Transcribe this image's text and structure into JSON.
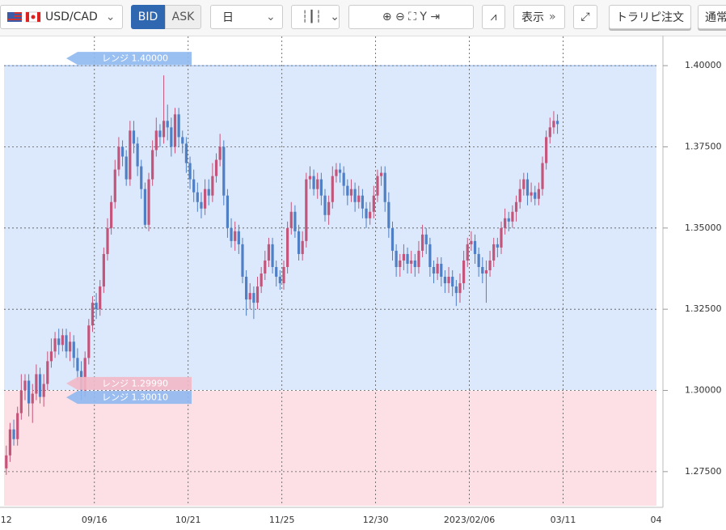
{
  "toolbar": {
    "pair": "USD/CAD",
    "bid": "BID",
    "ask": "ASK",
    "period": "日",
    "display": "表示",
    "order": "トラリピ注文",
    "normal": "通常"
  },
  "chart_data": {
    "type": "candlestick",
    "xlim": [
      -0.6,
      173.4
    ],
    "xticks": [
      {
        "value": 0,
        "label": "12"
      },
      {
        "value": 23.5,
        "label": "09/16"
      },
      {
        "value": 48.5,
        "label": "10/21"
      },
      {
        "value": 73.5,
        "label": "11/25"
      },
      {
        "value": 98.5,
        "label": "12/30"
      },
      {
        "value": 123.5,
        "label": "2023/02/06"
      },
      {
        "value": 148.5,
        "label": "03/11"
      },
      {
        "value": 173.3,
        "label": "04"
      }
    ],
    "ylim": [
      1.2645,
      1.409
    ],
    "yticks": [
      {
        "value": 1.4,
        "label": "1.40000"
      },
      {
        "value": 1.375,
        "label": "1.37500"
      },
      {
        "value": 1.35,
        "label": "1.35000"
      },
      {
        "value": 1.325,
        "label": "1.32500"
      },
      {
        "value": 1.3,
        "label": "1.30000"
      },
      {
        "value": 1.275,
        "label": "1.27500"
      }
    ],
    "grid": true,
    "up_color": "#c4557a",
    "down_color": "#4f7fc4",
    "ranges": [
      {
        "label": "レンジ 1.40000",
        "value": 1.4,
        "color": "#8fb8f0"
      },
      {
        "label": "レンジ 1.29990",
        "value": 1.2999,
        "color": "#f2b8c6"
      },
      {
        "label": "レンジ 1.30010",
        "value": 1.3001,
        "color": "#8fb8f0"
      }
    ],
    "open": [
      1.276,
      1.28,
      1.288,
      1.285,
      1.293,
      1.3,
      1.303,
      1.296,
      1.299,
      1.305,
      1.298,
      1.302,
      1.309,
      1.312,
      1.316,
      1.314,
      1.317,
      1.312,
      1.315,
      1.31,
      1.306,
      1.3,
      1.31,
      1.32,
      1.327,
      1.325,
      1.332,
      1.342,
      1.35,
      1.358,
      1.368,
      1.375,
      1.372,
      1.365,
      1.38,
      1.376,
      1.369,
      1.362,
      1.351,
      1.365,
      1.374,
      1.38,
      1.378,
      1.383,
      1.381,
      1.375,
      1.385,
      1.378,
      1.376,
      1.37,
      1.365,
      1.361,
      1.358,
      1.356,
      1.362,
      1.36,
      1.366,
      1.371,
      1.375,
      1.36,
      1.35,
      1.346,
      1.349,
      1.345,
      1.335,
      1.328,
      1.33,
      1.327,
      1.332,
      1.336,
      1.34,
      1.345,
      1.338,
      1.335,
      1.333,
      1.338,
      1.35,
      1.355,
      1.349,
      1.342,
      1.346,
      1.365,
      1.366,
      1.362,
      1.365,
      1.36,
      1.354,
      1.358,
      1.366,
      1.368,
      1.367,
      1.363,
      1.36,
      1.362,
      1.358,
      1.36,
      1.356,
      1.353,
      1.355,
      1.36,
      1.366,
      1.367,
      1.358,
      1.35,
      1.343,
      1.338,
      1.34,
      1.342,
      1.339,
      1.34,
      1.338,
      1.343,
      1.348,
      1.345,
      1.338,
      1.336,
      1.339,
      1.335,
      1.333,
      1.335,
      1.332,
      1.33,
      1.333,
      1.34,
      1.345,
      1.346,
      1.342,
      1.338,
      1.336,
      1.337,
      1.34,
      1.345,
      1.344,
      1.35,
      1.353,
      1.352,
      1.355,
      1.358,
      1.362,
      1.365,
      1.36,
      1.361,
      1.359,
      1.362,
      1.37,
      1.378,
      1.381,
      1.383
    ],
    "high": [
      1.283,
      1.29,
      1.291,
      1.295,
      1.305,
      1.305,
      1.305,
      1.302,
      1.308,
      1.307,
      1.305,
      1.312,
      1.316,
      1.318,
      1.319,
      1.319,
      1.319,
      1.318,
      1.317,
      1.313,
      1.309,
      1.312,
      1.322,
      1.329,
      1.33,
      1.334,
      1.344,
      1.353,
      1.36,
      1.371,
      1.378,
      1.377,
      1.374,
      1.383,
      1.383,
      1.378,
      1.371,
      1.364,
      1.367,
      1.377,
      1.384,
      1.382,
      1.397,
      1.388,
      1.384,
      1.387,
      1.387,
      1.38,
      1.378,
      1.372,
      1.368,
      1.364,
      1.361,
      1.365,
      1.365,
      1.37,
      1.373,
      1.379,
      1.377,
      1.362,
      1.353,
      1.352,
      1.351,
      1.347,
      1.337,
      1.333,
      1.332,
      1.335,
      1.338,
      1.343,
      1.347,
      1.347,
      1.34,
      1.337,
      1.34,
      1.352,
      1.358,
      1.357,
      1.351,
      1.349,
      1.367,
      1.369,
      1.368,
      1.367,
      1.367,
      1.362,
      1.36,
      1.369,
      1.37,
      1.37,
      1.369,
      1.365,
      1.365,
      1.364,
      1.363,
      1.362,
      1.358,
      1.358,
      1.363,
      1.368,
      1.369,
      1.369,
      1.361,
      1.352,
      1.345,
      1.342,
      1.345,
      1.344,
      1.343,
      1.342,
      1.346,
      1.351,
      1.35,
      1.347,
      1.34,
      1.341,
      1.341,
      1.337,
      1.338,
      1.337,
      1.334,
      1.336,
      1.343,
      1.347,
      1.349,
      1.348,
      1.344,
      1.341,
      1.34,
      1.343,
      1.347,
      1.347,
      1.352,
      1.356,
      1.355,
      1.357,
      1.36,
      1.365,
      1.367,
      1.367,
      1.364,
      1.363,
      1.364,
      1.372,
      1.38,
      1.384,
      1.386,
      1.385
    ],
    "low": [
      1.274,
      1.278,
      1.283,
      1.283,
      1.291,
      1.297,
      1.292,
      1.29,
      1.297,
      1.296,
      1.295,
      1.3,
      1.307,
      1.31,
      1.311,
      1.312,
      1.31,
      1.309,
      1.307,
      1.303,
      1.297,
      1.298,
      1.308,
      1.318,
      1.322,
      1.323,
      1.33,
      1.34,
      1.348,
      1.356,
      1.366,
      1.369,
      1.363,
      1.363,
      1.373,
      1.366,
      1.359,
      1.35,
      1.349,
      1.363,
      1.372,
      1.375,
      1.376,
      1.377,
      1.372,
      1.373,
      1.375,
      1.373,
      1.367,
      1.362,
      1.358,
      1.355,
      1.353,
      1.354,
      1.357,
      1.358,
      1.364,
      1.369,
      1.357,
      1.347,
      1.344,
      1.343,
      1.342,
      1.333,
      1.323,
      1.325,
      1.322,
      1.325,
      1.33,
      1.334,
      1.338,
      1.336,
      1.332,
      1.331,
      1.331,
      1.336,
      1.348,
      1.347,
      1.34,
      1.34,
      1.344,
      1.362,
      1.36,
      1.359,
      1.357,
      1.352,
      1.351,
      1.356,
      1.364,
      1.364,
      1.36,
      1.357,
      1.358,
      1.355,
      1.356,
      1.353,
      1.35,
      1.351,
      1.353,
      1.358,
      1.363,
      1.355,
      1.347,
      1.34,
      1.335,
      1.335,
      1.337,
      1.336,
      1.336,
      1.335,
      1.336,
      1.341,
      1.342,
      1.335,
      1.333,
      1.334,
      1.332,
      1.33,
      1.33,
      1.329,
      1.326,
      1.327,
      1.331,
      1.338,
      1.343,
      1.339,
      1.335,
      1.333,
      1.327,
      1.335,
      1.338,
      1.341,
      1.342,
      1.348,
      1.349,
      1.35,
      1.352,
      1.356,
      1.36,
      1.357,
      1.358,
      1.357,
      1.357,
      1.36,
      1.368,
      1.376,
      1.379,
      1.379
    ],
    "close": [
      1.28,
      1.288,
      1.285,
      1.293,
      1.3,
      1.303,
      1.296,
      1.299,
      1.305,
      1.298,
      1.302,
      1.309,
      1.312,
      1.316,
      1.314,
      1.317,
      1.312,
      1.315,
      1.31,
      1.306,
      1.3,
      1.31,
      1.32,
      1.327,
      1.325,
      1.332,
      1.342,
      1.35,
      1.358,
      1.368,
      1.375,
      1.372,
      1.365,
      1.38,
      1.376,
      1.369,
      1.362,
      1.351,
      1.365,
      1.374,
      1.38,
      1.378,
      1.383,
      1.381,
      1.375,
      1.385,
      1.378,
      1.376,
      1.37,
      1.365,
      1.361,
      1.358,
      1.356,
      1.362,
      1.36,
      1.366,
      1.371,
      1.375,
      1.36,
      1.35,
      1.346,
      1.349,
      1.345,
      1.335,
      1.328,
      1.33,
      1.327,
      1.332,
      1.336,
      1.34,
      1.345,
      1.338,
      1.335,
      1.333,
      1.338,
      1.35,
      1.355,
      1.349,
      1.342,
      1.346,
      1.365,
      1.366,
      1.362,
      1.365,
      1.36,
      1.354,
      1.358,
      1.366,
      1.368,
      1.367,
      1.363,
      1.36,
      1.362,
      1.358,
      1.36,
      1.356,
      1.353,
      1.355,
      1.36,
      1.366,
      1.367,
      1.358,
      1.35,
      1.343,
      1.338,
      1.34,
      1.342,
      1.339,
      1.34,
      1.338,
      1.343,
      1.348,
      1.345,
      1.338,
      1.336,
      1.339,
      1.335,
      1.333,
      1.335,
      1.332,
      1.33,
      1.333,
      1.34,
      1.345,
      1.346,
      1.342,
      1.338,
      1.336,
      1.337,
      1.34,
      1.345,
      1.344,
      1.35,
      1.353,
      1.352,
      1.355,
      1.358,
      1.362,
      1.365,
      1.36,
      1.361,
      1.359,
      1.362,
      1.37,
      1.378,
      1.381,
      1.383,
      1.382
    ]
  }
}
